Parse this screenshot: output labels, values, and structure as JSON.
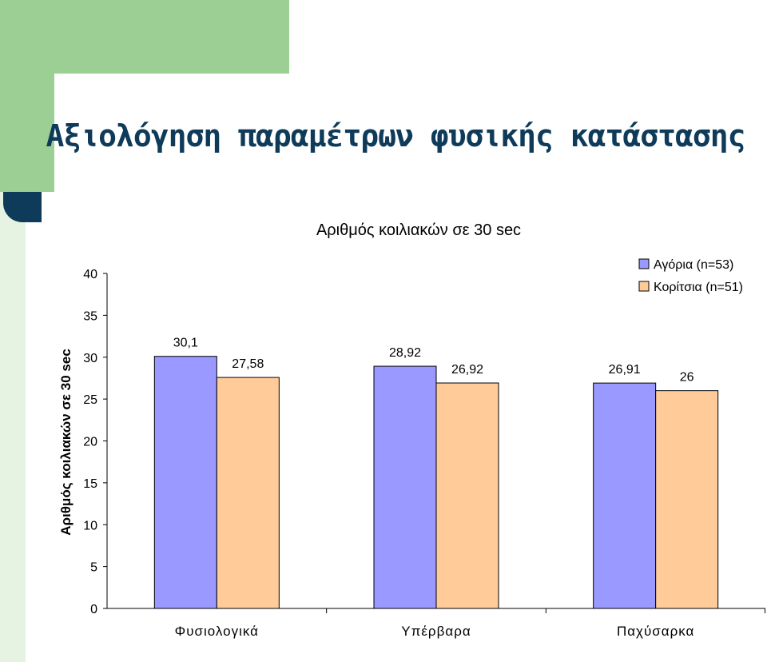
{
  "slide": {
    "title": "Αξιολόγηση παραμέτρων φυσικής κατάστασης",
    "colors": {
      "green": "#9ccf94",
      "light_green": "#e6f2e2",
      "title_text": "#0f3b5a",
      "dot": "#0f3b5a"
    }
  },
  "chart_data": {
    "type": "bar",
    "title": "Αριθμός κοιλιακών σε 30 sec",
    "xlabel": "",
    "ylabel": "Αριθμός κοιλιακών σε 30 sec",
    "ylim": [
      0,
      40
    ],
    "yticks": [
      0,
      5,
      10,
      15,
      20,
      25,
      30,
      35,
      40
    ],
    "grid": false,
    "legend_position": "top-right",
    "categories": [
      "Φυσιολογικά",
      "Υπέρβαρα",
      "Παχύσαρκα"
    ],
    "series": [
      {
        "name": "Αγόρια (n=53)",
        "color": "#9999ff",
        "values": [
          30.1,
          28.92,
          26.91
        ],
        "labels": [
          "30,1",
          "28,92",
          "26,91"
        ]
      },
      {
        "name": "Κορίτσια (n=51)",
        "color": "#ffcc99",
        "values": [
          27.58,
          26.92,
          26
        ],
        "labels": [
          "27,58",
          "26,92",
          "26"
        ]
      }
    ]
  }
}
